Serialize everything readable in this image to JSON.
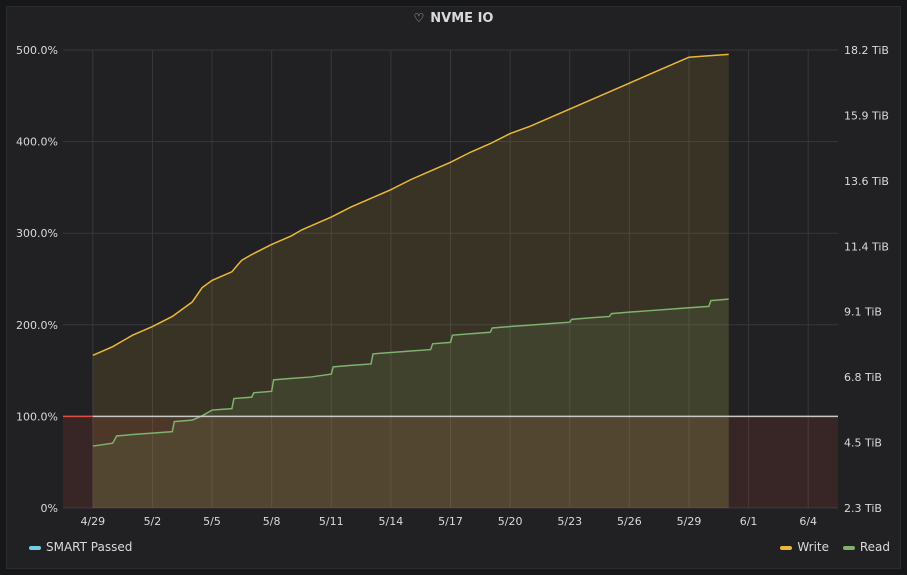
{
  "panel": {
    "title": "NVME IO",
    "title_icon": "heart-icon"
  },
  "legend": {
    "left": [
      {
        "label": "SMART Passed",
        "color": "#6ed0e0"
      }
    ],
    "right": [
      {
        "label": "Write",
        "color": "#eab839"
      },
      {
        "label": "Read",
        "color": "#7eb26d"
      }
    ]
  },
  "chart_data": {
    "type": "line",
    "x_ticks": [
      "4/29",
      "5/2",
      "5/5",
      "5/8",
      "5/11",
      "5/14",
      "5/17",
      "5/20",
      "5/23",
      "5/26",
      "5/29",
      "6/1",
      "6/4"
    ],
    "y_left_ticks": [
      "0%",
      "100.0%",
      "200.0%",
      "300.0%",
      "400.0%",
      "500.0%"
    ],
    "y_left_range": [
      0,
      500
    ],
    "y_right_ticks": [
      "2.3 TiB",
      "4.5 TiB",
      "6.8 TiB",
      "9.1 TiB",
      "11.4 TiB",
      "13.6 TiB",
      "15.9 TiB",
      "18.2 TiB"
    ],
    "y_right_range": [
      2.3,
      18.2
    ],
    "x_range_days": [
      -1.5,
      37.5
    ],
    "threshold": {
      "value": 100,
      "color": "#e24d42"
    },
    "series": [
      {
        "name": "Write",
        "axis": "right",
        "color": "#eab839",
        "points": [
          [
            0,
            7.6
          ],
          [
            1,
            7.9
          ],
          [
            2,
            8.3
          ],
          [
            3,
            8.6
          ],
          [
            4,
            8.95
          ],
          [
            5,
            9.45
          ],
          [
            5.5,
            9.95
          ],
          [
            6,
            10.2
          ],
          [
            6.5,
            10.35
          ],
          [
            7,
            10.5
          ],
          [
            7.3,
            10.75
          ],
          [
            7.5,
            10.9
          ],
          [
            8,
            11.1
          ],
          [
            9,
            11.45
          ],
          [
            10,
            11.75
          ],
          [
            10.5,
            11.95
          ],
          [
            11,
            12.1
          ],
          [
            12,
            12.4
          ],
          [
            13,
            12.75
          ],
          [
            14,
            13.05
          ],
          [
            15,
            13.35
          ],
          [
            16,
            13.7
          ],
          [
            17,
            14.0
          ],
          [
            18,
            14.3
          ],
          [
            19,
            14.65
          ],
          [
            20,
            14.95
          ],
          [
            21,
            15.3
          ],
          [
            22,
            15.55
          ],
          [
            23,
            15.85
          ],
          [
            24,
            16.15
          ],
          [
            25,
            16.45
          ],
          [
            26,
            16.75
          ],
          [
            27,
            17.05
          ],
          [
            28,
            17.35
          ],
          [
            29,
            17.65
          ],
          [
            30,
            17.95
          ],
          [
            31,
            18.0
          ],
          [
            32,
            18.05
          ]
        ]
      },
      {
        "name": "Read",
        "axis": "right",
        "color": "#7eb26d",
        "points": [
          [
            0,
            4.45
          ],
          [
            1,
            4.55
          ],
          [
            1.2,
            4.8
          ],
          [
            2,
            4.85
          ],
          [
            3,
            4.9
          ],
          [
            4,
            4.95
          ],
          [
            4.1,
            5.3
          ],
          [
            5,
            5.35
          ],
          [
            5.5,
            5.5
          ],
          [
            6,
            5.7
          ],
          [
            7,
            5.75
          ],
          [
            7.1,
            6.1
          ],
          [
            8,
            6.15
          ],
          [
            8.1,
            6.3
          ],
          [
            9,
            6.35
          ],
          [
            9.1,
            6.75
          ],
          [
            10,
            6.8
          ],
          [
            11,
            6.85
          ],
          [
            12,
            6.95
          ],
          [
            12.1,
            7.2
          ],
          [
            13,
            7.25
          ],
          [
            14,
            7.3
          ],
          [
            14.1,
            7.65
          ],
          [
            15,
            7.7
          ],
          [
            16,
            7.75
          ],
          [
            17,
            7.8
          ],
          [
            17.1,
            8.0
          ],
          [
            18,
            8.05
          ],
          [
            18.1,
            8.3
          ],
          [
            19,
            8.35
          ],
          [
            20,
            8.4
          ],
          [
            20.1,
            8.55
          ],
          [
            21,
            8.6
          ],
          [
            22,
            8.65
          ],
          [
            23,
            8.7
          ],
          [
            24,
            8.75
          ],
          [
            24.1,
            8.85
          ],
          [
            25,
            8.9
          ],
          [
            26,
            8.95
          ],
          [
            26.1,
            9.05
          ],
          [
            27,
            9.1
          ],
          [
            28,
            9.15
          ],
          [
            29,
            9.2
          ],
          [
            30,
            9.25
          ],
          [
            31,
            9.3
          ],
          [
            31.1,
            9.5
          ],
          [
            32,
            9.55
          ]
        ]
      },
      {
        "name": "SMART Passed",
        "axis": "left",
        "color": "#6ed0e0",
        "points": [
          [
            -1.5,
            100
          ],
          [
            37.5,
            100
          ]
        ]
      }
    ]
  }
}
